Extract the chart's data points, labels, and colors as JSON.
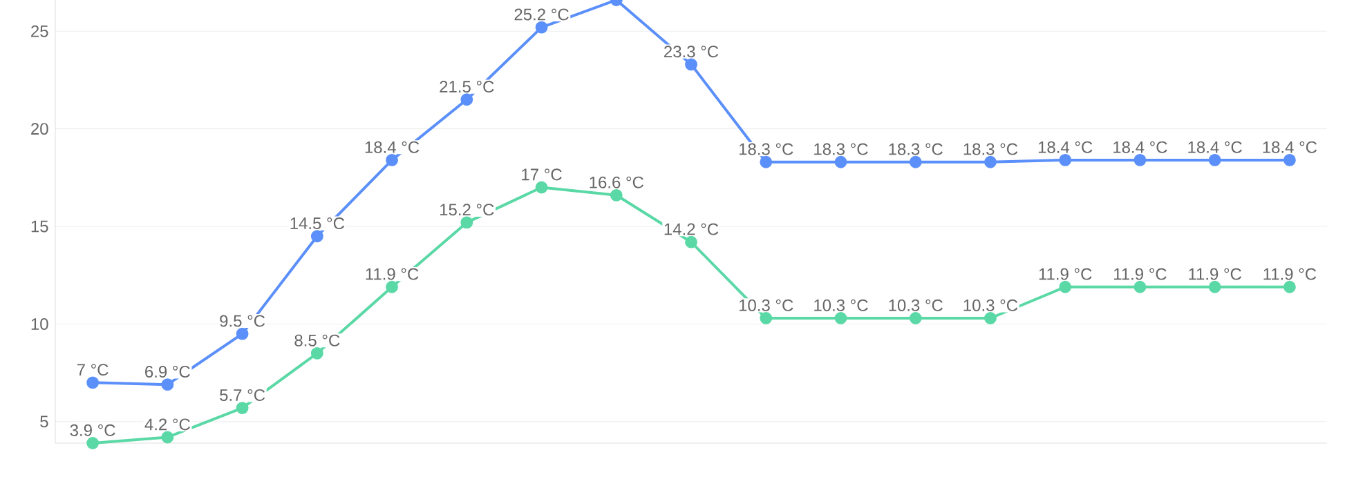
{
  "chart_data": {
    "type": "line",
    "categories": [
      null,
      null,
      null,
      null,
      null,
      null,
      null,
      null,
      null,
      null,
      null,
      null,
      null,
      null,
      null,
      null,
      null
    ],
    "ylim": [
      3.9,
      26.6
    ],
    "yticks": [
      5,
      10,
      15,
      20,
      25
    ],
    "grid": "y",
    "tick_labels": "y",
    "marker": "circle",
    "line_style": "solid",
    "series": [
      {
        "color": "#5b8ff9",
        "values": [
          7,
          6.9,
          9.5,
          14.5,
          18.4,
          21.5,
          25.2,
          26.6,
          23.3,
          18.3,
          18.3,
          18.3,
          18.3,
          18.4,
          18.4,
          18.4,
          18.4
        ],
        "value_labels": [
          "7 °C",
          "6.9 °C",
          "9.5 °C",
          "14.5 °C",
          "18.4 °C",
          "21.5 °C",
          "25.2 °C",
          null,
          "23.3 °C",
          "18.3 °C",
          "18.3 °C",
          "18.3 °C",
          "18.3 °C",
          "18.4 °C",
          "18.4 °C",
          "18.4 °C",
          "18.4 °C"
        ]
      },
      {
        "color": "#5ad8a6",
        "values": [
          3.9,
          4.2,
          5.7,
          8.5,
          11.9,
          15.2,
          17,
          16.6,
          14.2,
          10.3,
          10.3,
          10.3,
          10.3,
          11.9,
          11.9,
          11.9,
          11.9
        ],
        "value_labels": [
          "3.9 °C",
          "4.2 °C",
          "5.7 °C",
          "8.5 °C",
          "11.9 °C",
          "15.2 °C",
          "17 °C",
          "16.6 °C",
          "14.2 °C",
          "10.3 °C",
          "10.3 °C",
          "10.3 °C",
          "10.3 °C",
          "11.9 °C",
          "11.9 °C",
          "11.9 °C",
          "11.9 °C"
        ]
      }
    ]
  }
}
